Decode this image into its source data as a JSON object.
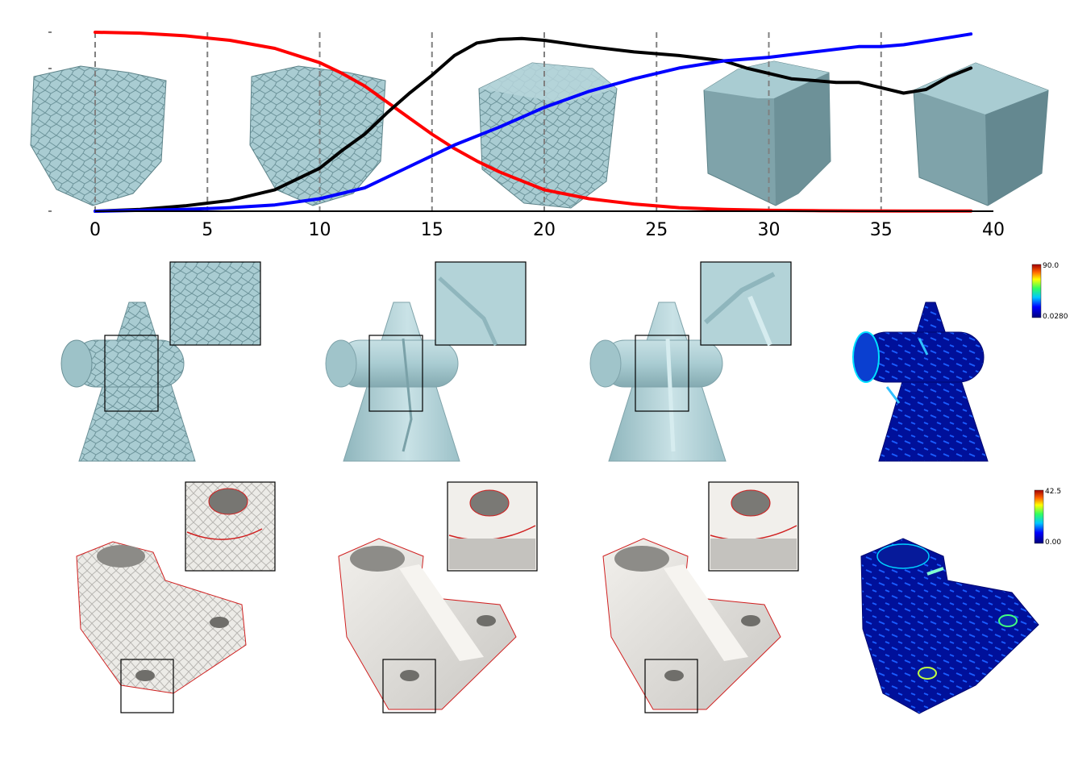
{
  "chart_data": {
    "type": "line",
    "title": "",
    "xlabel": "",
    "ylabel": "",
    "xlim": [
      0,
      40
    ],
    "ylim": [
      0,
      1
    ],
    "x_ticks": [
      "0",
      "5",
      "10",
      "15",
      "20",
      "25",
      "30",
      "35",
      "40"
    ],
    "grid": "vertical dashed lines at x ticks 0-35",
    "legend": "none",
    "series": [
      {
        "color": "#ff0000",
        "x": [
          0,
          2,
          4,
          6,
          8,
          10,
          11,
          12,
          13,
          14,
          15,
          16,
          17,
          18,
          19,
          20,
          22,
          24,
          26,
          28,
          30,
          32,
          34,
          36,
          39
        ],
        "y": [
          1.0,
          0.995,
          0.98,
          0.955,
          0.91,
          0.83,
          0.77,
          0.7,
          0.61,
          0.52,
          0.43,
          0.35,
          0.28,
          0.22,
          0.17,
          0.12,
          0.07,
          0.04,
          0.02,
          0.01,
          0.005,
          0.003,
          0.002,
          0.001,
          0.001
        ]
      },
      {
        "color": "#000000",
        "x": [
          0,
          2,
          4,
          6,
          8,
          10,
          11,
          12,
          13,
          14,
          15,
          16,
          17,
          18,
          19,
          20,
          22,
          24,
          26,
          28,
          29,
          30,
          31,
          32,
          33,
          34,
          35,
          36,
          37,
          38,
          39
        ],
        "y": [
          0.0,
          0.01,
          0.03,
          0.06,
          0.12,
          0.24,
          0.34,
          0.43,
          0.55,
          0.66,
          0.76,
          0.87,
          0.94,
          0.96,
          0.965,
          0.955,
          0.92,
          0.89,
          0.87,
          0.84,
          0.8,
          0.77,
          0.74,
          0.73,
          0.72,
          0.72,
          0.69,
          0.66,
          0.68,
          0.75,
          0.8
        ]
      },
      {
        "color": "#0000ff",
        "x": [
          0,
          2,
          4,
          6,
          8,
          10,
          12,
          14,
          16,
          18,
          20,
          22,
          24,
          26,
          28,
          30,
          32,
          34,
          35,
          36,
          38,
          39
        ],
        "y": [
          0.0,
          0.005,
          0.01,
          0.02,
          0.035,
          0.07,
          0.13,
          0.25,
          0.37,
          0.47,
          0.58,
          0.67,
          0.74,
          0.8,
          0.84,
          0.86,
          0.89,
          0.92,
          0.92,
          0.93,
          0.97,
          0.99
        ]
      }
    ]
  },
  "colorbars": [
    {
      "max": "90.0",
      "min": "0.0280"
    },
    {
      "max": "42.5",
      "min": "0.00"
    }
  ],
  "colors": {
    "mesh_blue": "#a9ccd2",
    "mesh_white": "#e8e6e2",
    "heat_blue": "#00109a",
    "highlight": "#e02020"
  }
}
